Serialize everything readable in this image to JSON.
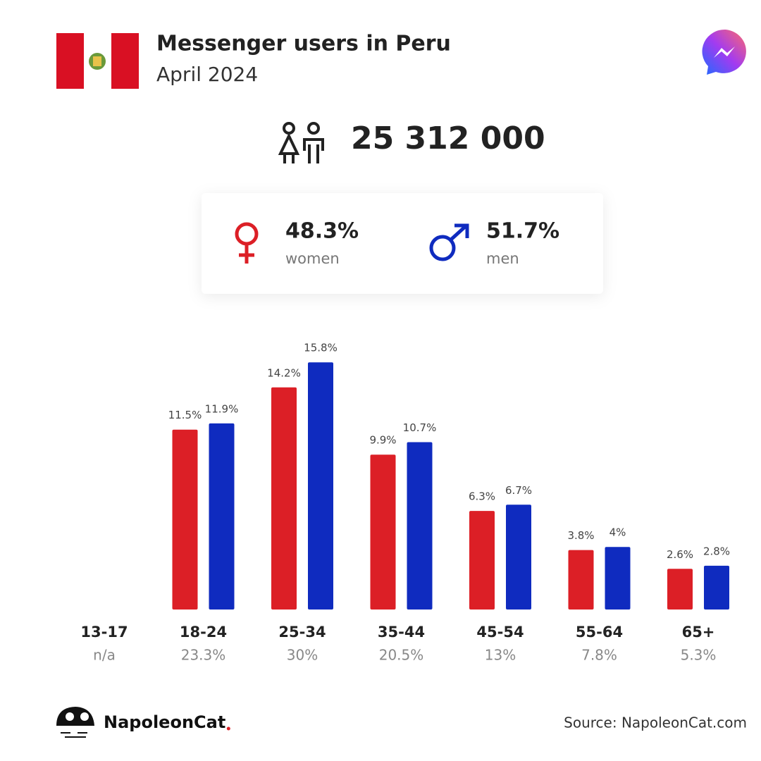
{
  "chart_data": {
    "type": "bar",
    "title": "Messenger users in Peru",
    "subtitle": "April 2024",
    "total_users": {
      "value": 25312000,
      "label": "25 312 000"
    },
    "gender": [
      {
        "name": "women",
        "value": 48.3,
        "value_label": "48.3%",
        "color": "#dc1f26"
      },
      {
        "name": "men",
        "value": 51.7,
        "value_label": "51.7%",
        "color": "#0f2bbf"
      }
    ],
    "categories": [
      "13-17",
      "18-24",
      "25-34",
      "35-44",
      "45-54",
      "55-64",
      "65+"
    ],
    "series": [
      {
        "color": "#dc1f26",
        "values": [
          null,
          11.5,
          14.2,
          9.9,
          6.3,
          3.8,
          2.6
        ],
        "value_labels": [
          null,
          "11.5%",
          "14.2%",
          "9.9%",
          "6.3%",
          "3.8%",
          "2.6%"
        ]
      },
      {
        "color": "#0f2bbf",
        "values": [
          null,
          11.9,
          15.8,
          10.7,
          6.7,
          4,
          2.8
        ],
        "value_labels": [
          null,
          "11.9%",
          "15.8%",
          "10.7%",
          "6.7%",
          "4%",
          "2.8%"
        ]
      }
    ],
    "totals": {
      "values": [
        null,
        23.3,
        30,
        20.5,
        13,
        7.8,
        5.3
      ],
      "value_labels": [
        "n/a",
        "23.3%",
        "30%",
        "20.5%",
        "13%",
        "7.8%",
        "5.3%"
      ]
    },
    "brand": "NapoleonCat",
    "source": "Source: NapoleonCat.com"
  }
}
